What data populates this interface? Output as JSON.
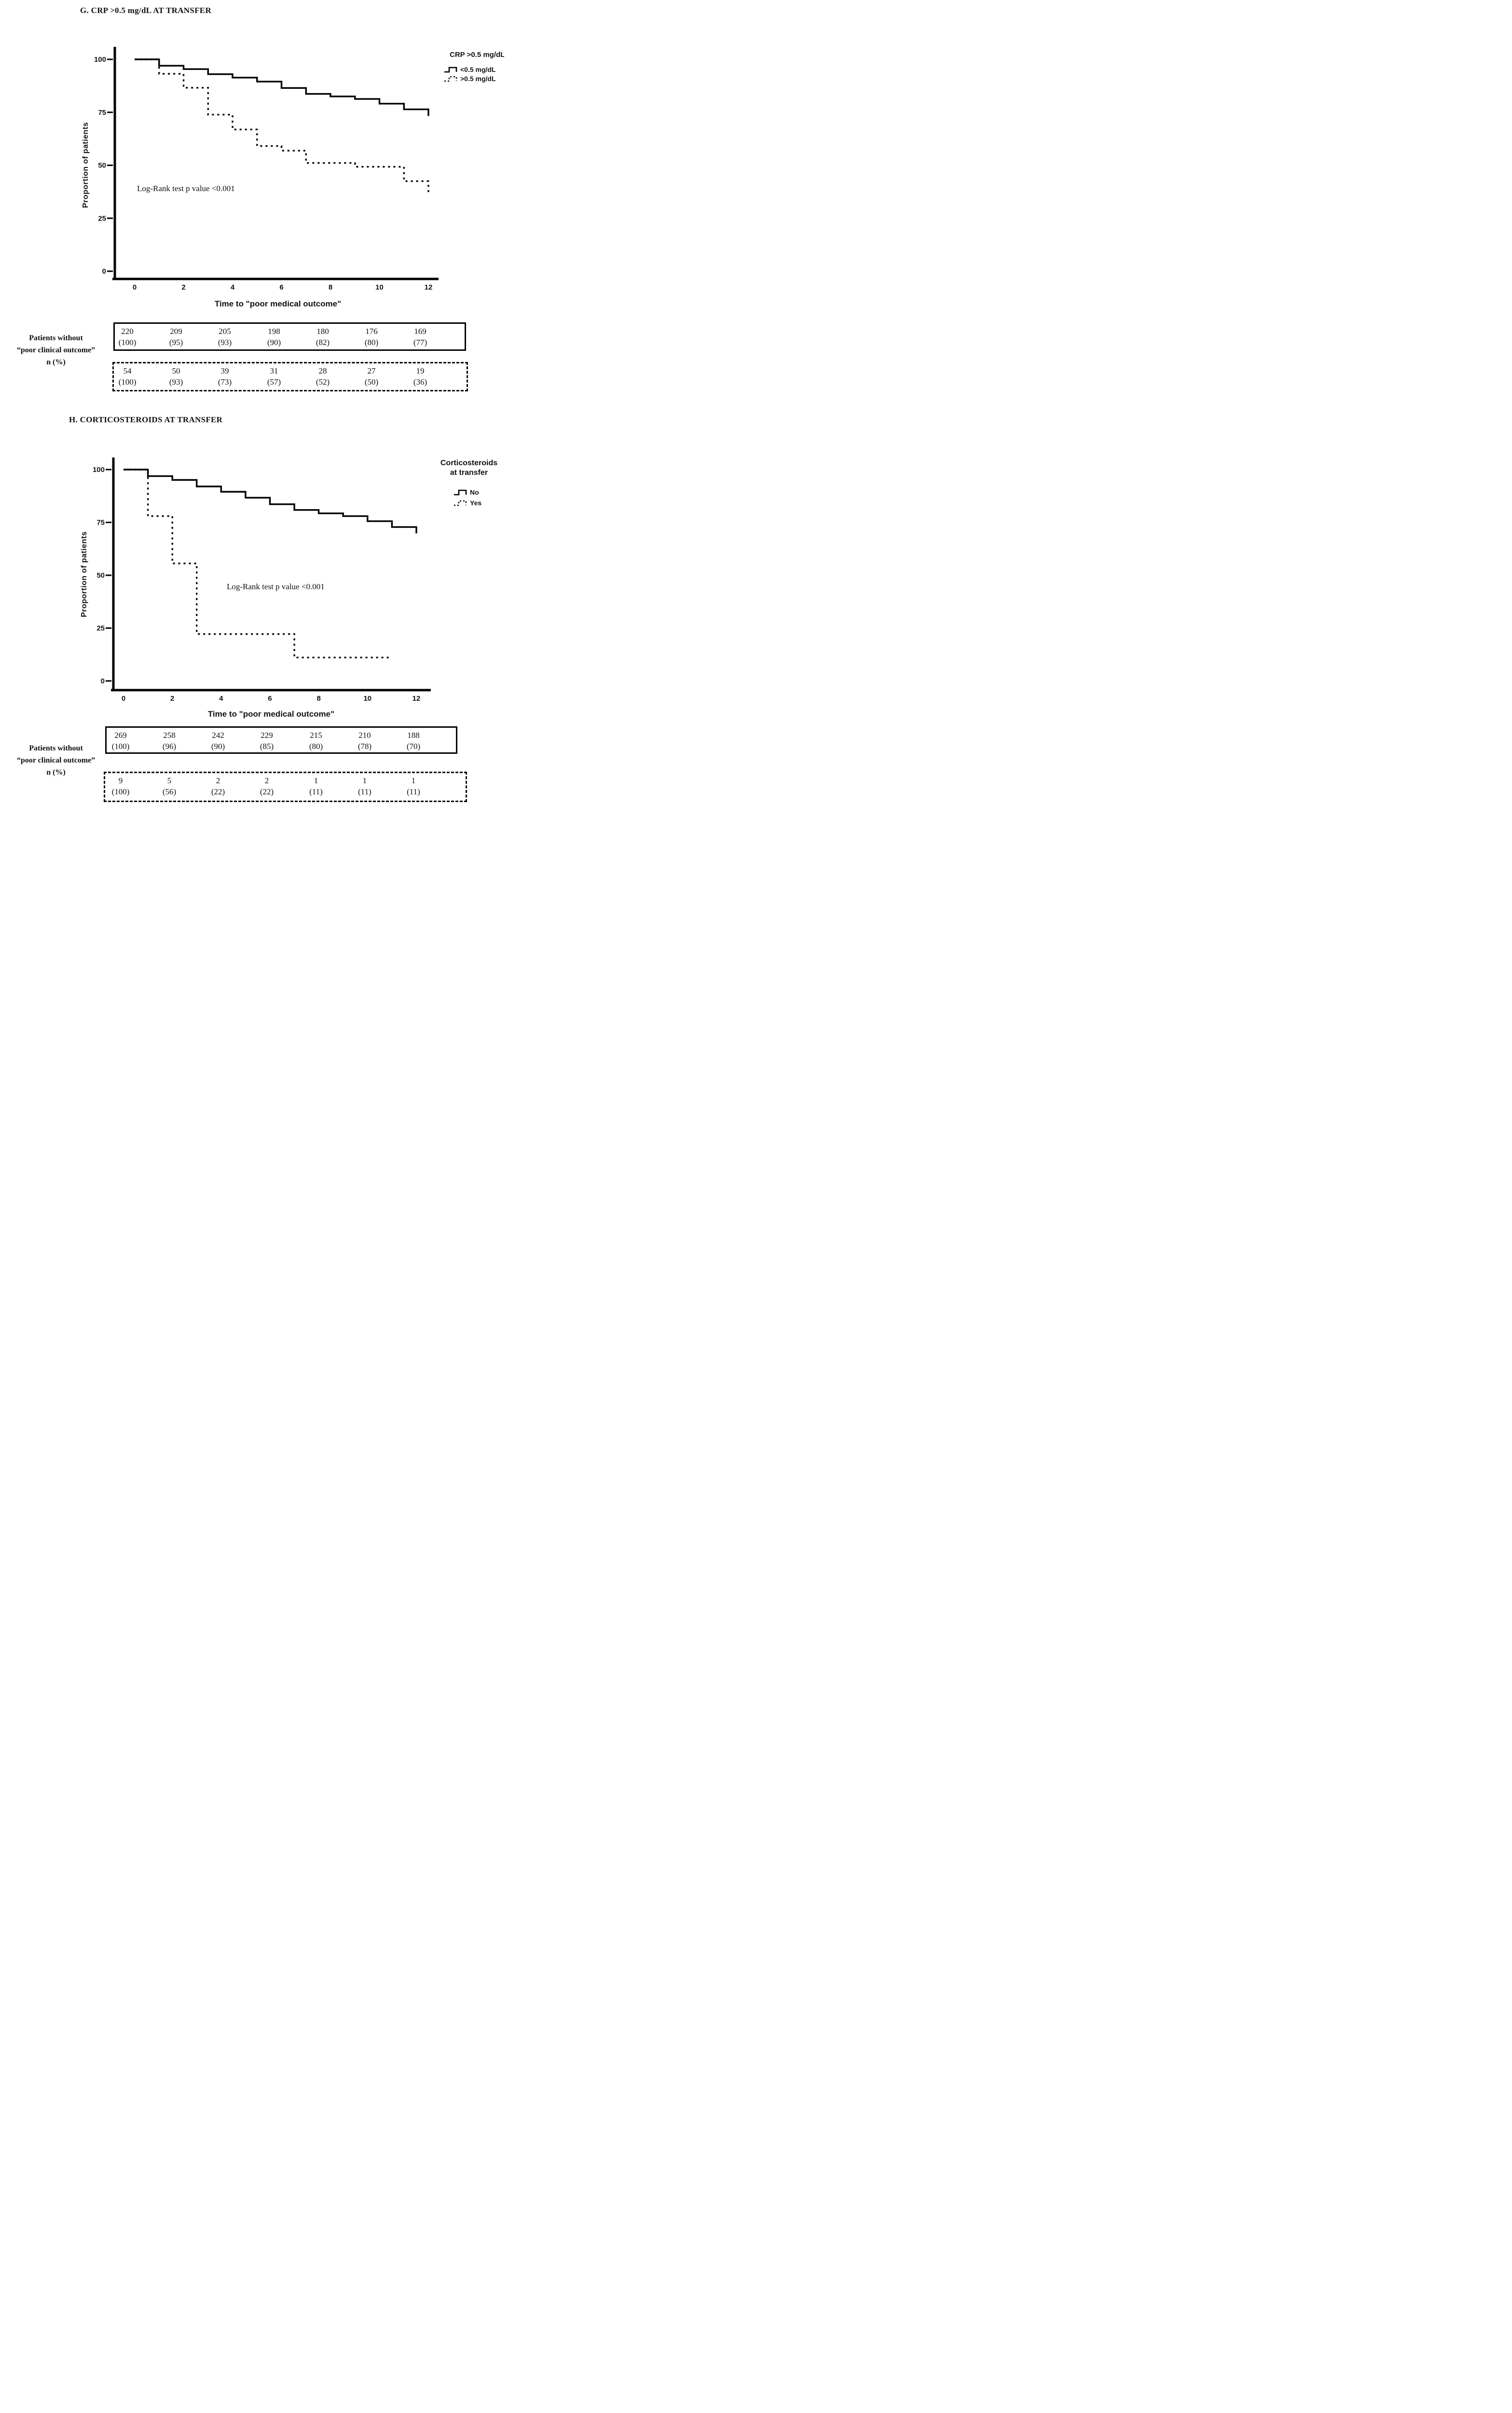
{
  "figure": {
    "panels": [
      {
        "id": "G",
        "title": "G. CRP >0.5 mg/dL AT TRANSFER",
        "ylabel": "Proportion of patients",
        "xlabel": "Time to \"poor medical outcome\"",
        "annotation": "Log-Rank test p value <0.001",
        "legend": {
          "title_lines": [
            "CRP >0.5 mg/dL"
          ],
          "entries": [
            {
              "label": "<0.5 mg/dL",
              "style": "solid"
            },
            {
              "label": ">0.5 mg/dL",
              "style": "dashed"
            }
          ]
        },
        "risk_label_lines": [
          "Patients without",
          "“poor clinical outcome”",
          "n (%)"
        ],
        "risk_tables": [
          {
            "style": "solid",
            "n": [
              "220",
              "209",
              "205",
              "198",
              "180",
              "176",
              "169"
            ],
            "pct": [
              "(100)",
              "(95)",
              "(93)",
              "(90)",
              "(82)",
              "(80)",
              "(77)"
            ]
          },
          {
            "style": "dashed",
            "n": [
              "54",
              "50",
              "39",
              "31",
              "28",
              "27",
              "19"
            ],
            "pct": [
              "(100)",
              "(93)",
              "(73)",
              "(57)",
              "(52)",
              "(50)",
              "(36)"
            ]
          }
        ]
      },
      {
        "id": "H",
        "title": "H. CORTICOSTEROIDS AT TRANSFER",
        "ylabel": "Proportion of patients",
        "xlabel": "Time to \"poor medical outcome\"",
        "annotation": "Log-Rank test p value <0.001",
        "legend": {
          "title_lines": [
            "Corticosteroids",
            "at transfer"
          ],
          "entries": [
            {
              "label": "No",
              "style": "solid"
            },
            {
              "label": "Yes",
              "style": "dashed"
            }
          ]
        },
        "risk_label_lines": [
          "Patients without",
          "“poor clinical outcome”",
          "n (%)"
        ],
        "risk_tables": [
          {
            "style": "solid",
            "n": [
              "269",
              "258",
              "242",
              "229",
              "215",
              "210",
              "188"
            ],
            "pct": [
              "(100)",
              "(96)",
              "(90)",
              "(85)",
              "(80)",
              "(78)",
              "(70)"
            ]
          },
          {
            "style": "dashed",
            "n": [
              "9",
              "5",
              "2",
              "2",
              "1",
              "1",
              "1"
            ],
            "pct": [
              "(100)",
              "(56)",
              "(22)",
              "(22)",
              "(11)",
              "(11)",
              "(11)"
            ]
          }
        ]
      }
    ]
  },
  "chart_data": [
    {
      "type": "line",
      "subtype": "kaplan-meier-step",
      "title": "G. CRP >0.5 mg/dL AT TRANSFER",
      "xlabel": "Time to \"poor medical outcome\"",
      "ylabel": "Proportion of patients",
      "xlim": [
        0,
        12
      ],
      "ylim": [
        0,
        100
      ],
      "x_ticks": [
        0,
        2,
        4,
        6,
        8,
        10,
        12
      ],
      "y_ticks": [
        0,
        25,
        50,
        75,
        100
      ],
      "grid": false,
      "legend_position": "top-right-outside",
      "annotation": "Log-Rank test p value <0.001",
      "series": [
        {
          "name": "<0.5 mg/dL",
          "style": "solid",
          "end_t": 12,
          "points": [
            [
              0,
              100
            ],
            [
              1,
              97
            ],
            [
              2,
              95.4
            ],
            [
              3,
              93
            ],
            [
              4,
              91.4
            ],
            [
              5,
              89.5
            ],
            [
              6,
              86.5
            ],
            [
              7,
              83.7
            ],
            [
              8,
              82.5
            ],
            [
              9,
              81.3
            ],
            [
              10,
              79.1
            ],
            [
              11,
              76.4
            ],
            [
              12,
              73.3
            ]
          ]
        },
        {
          "name": ">0.5 mg/dL",
          "style": "dashed",
          "end_t": 12,
          "points": [
            [
              0,
              100
            ],
            [
              1,
              93.2
            ],
            [
              2,
              86.6
            ],
            [
              3,
              73.9
            ],
            [
              4,
              66.9
            ],
            [
              5,
              59.1
            ],
            [
              6,
              56.9
            ],
            [
              7,
              51.1
            ],
            [
              9,
              49.3
            ],
            [
              11,
              42.5
            ],
            [
              12,
              37
            ]
          ]
        }
      ],
      "at_risk": {
        "times": [
          0,
          2,
          4,
          6,
          8,
          10,
          12
        ],
        "groups": [
          {
            "name": "<0.5 mg/dL",
            "n": [
              220,
              209,
              205,
              198,
              180,
              176,
              169
            ],
            "pct": [
              100,
              95,
              93,
              90,
              82,
              80,
              77
            ]
          },
          {
            "name": ">0.5 mg/dL",
            "n": [
              54,
              50,
              39,
              31,
              28,
              27,
              19
            ],
            "pct": [
              100,
              93,
              73,
              57,
              52,
              50,
              36
            ]
          }
        ]
      }
    },
    {
      "type": "line",
      "subtype": "kaplan-meier-step",
      "title": "H. CORTICOSTEROIDS AT TRANSFER",
      "xlabel": "Time to \"poor medical outcome\"",
      "ylabel": "Proportion of patients",
      "xlim": [
        0,
        12
      ],
      "ylim": [
        0,
        100
      ],
      "x_ticks": [
        0,
        2,
        4,
        6,
        8,
        10,
        12
      ],
      "y_ticks": [
        0,
        25,
        50,
        75,
        100
      ],
      "grid": false,
      "legend_position": "top-right-outside",
      "annotation": "Log-Rank test p value <0.001",
      "series": [
        {
          "name": "No",
          "style": "solid",
          "end_t": 12,
          "points": [
            [
              0,
              100
            ],
            [
              1,
              96.9
            ],
            [
              2,
              95.1
            ],
            [
              3,
              92
            ],
            [
              4,
              89.5
            ],
            [
              5,
              86.7
            ],
            [
              6,
              83.6
            ],
            [
              7,
              80.9
            ],
            [
              8,
              79.3
            ],
            [
              9,
              78
            ],
            [
              10,
              75.6
            ],
            [
              11,
              72.8
            ],
            [
              12,
              69.8
            ]
          ]
        },
        {
          "name": "Yes",
          "style": "dashed",
          "end_t": 11,
          "points": [
            [
              0,
              100
            ],
            [
              1,
              78
            ],
            [
              2,
              55.6
            ],
            [
              3,
              22.2
            ],
            [
              7,
              11.1
            ]
          ]
        }
      ],
      "at_risk": {
        "times": [
          0,
          2,
          4,
          6,
          8,
          10,
          12
        ],
        "groups": [
          {
            "name": "No",
            "n": [
              269,
              258,
              242,
              229,
              215,
              210,
              188
            ],
            "pct": [
              100,
              96,
              90,
              85,
              80,
              78,
              70
            ]
          },
          {
            "name": "Yes",
            "n": [
              9,
              5,
              2,
              2,
              1,
              1,
              1
            ],
            "pct": [
              100,
              56,
              22,
              22,
              11,
              11,
              11
            ]
          }
        ]
      }
    }
  ]
}
